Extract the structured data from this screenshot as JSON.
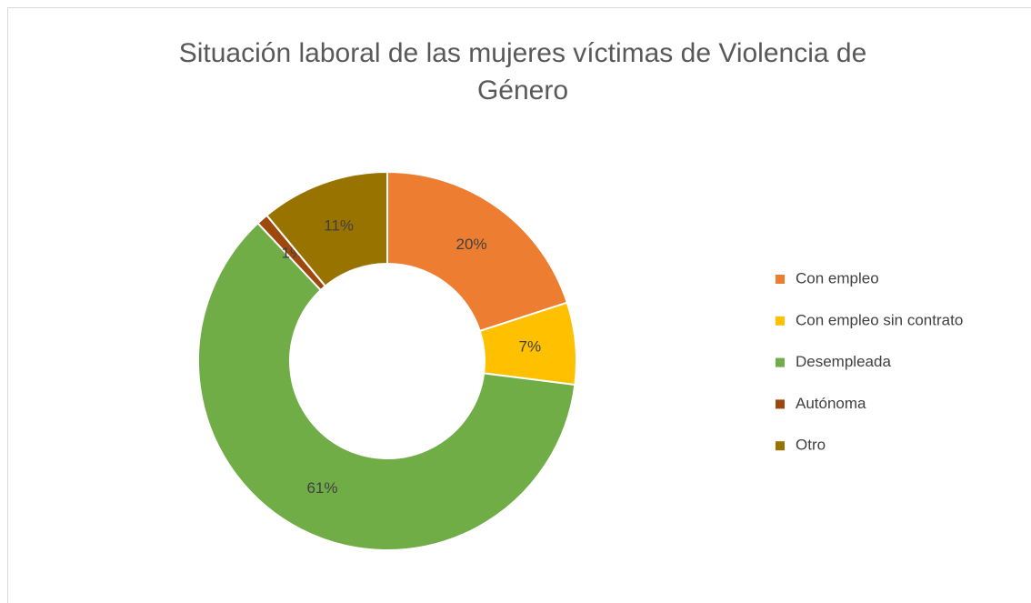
{
  "chart_data": {
    "type": "donut",
    "title": "Situación laboral de las mujeres víctimas de Violencia de Género",
    "categories": [
      "Con empleo",
      "Con empleo sin contrato",
      "Desempleada",
      "Autónoma",
      "Otro"
    ],
    "values": [
      20,
      7,
      61,
      1,
      11
    ],
    "value_labels": [
      "20%",
      "7%",
      "61%",
      "1%",
      "11%"
    ],
    "colors": [
      "#ED7D31",
      "#FFC000",
      "#70AD47",
      "#9E480E",
      "#997300"
    ],
    "legend": "right"
  }
}
